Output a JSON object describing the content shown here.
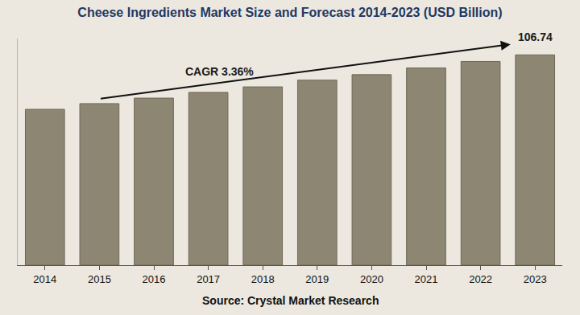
{
  "chart_data": {
    "type": "bar",
    "title": "Cheese Ingredients Market Size and Forecast 2014-2023 (USD Billion)",
    "categories": [
      "2014",
      "2015",
      "2016",
      "2017",
      "2018",
      "2019",
      "2020",
      "2021",
      "2022",
      "2023"
    ],
    "values": [
      79.1,
      82.0,
      84.8,
      87.7,
      90.5,
      93.9,
      96.7,
      100.1,
      103.4,
      106.74
    ],
    "color": "#8c8672",
    "ylim": [
      0,
      115
    ],
    "grid": false,
    "tick_labels": "x",
    "annotations": [
      {
        "text": "CAGR 3.36%"
      },
      {
        "text": "106.74",
        "x": "2023"
      }
    ],
    "source": "Source: Crystal Market Research"
  }
}
